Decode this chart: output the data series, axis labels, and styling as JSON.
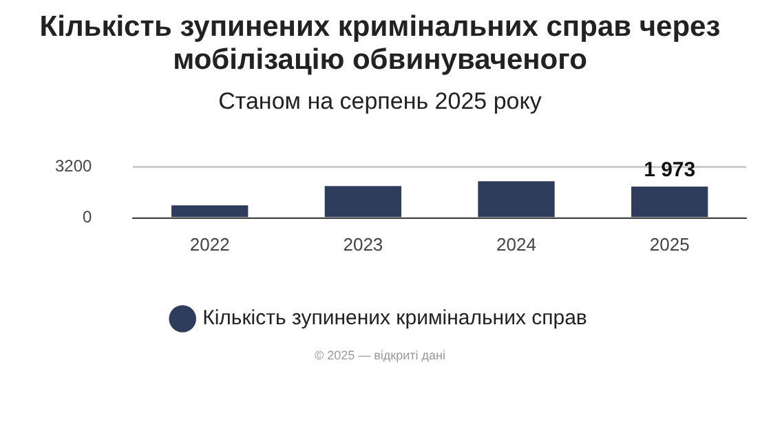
{
  "chart_data": {
    "type": "bar",
    "title": "Кількість зупинених кримінальних справ через мобілізацію обвинуваченого",
    "subtitle": "Станом на серпень 2025 року",
    "categories": [
      "2022",
      "2023",
      "2024",
      "2025"
    ],
    "series": [
      {
        "name": "Кількість зупинених кримінальних справ",
        "color": "#2e3d5c",
        "values": [
          800,
          2000,
          2300,
          1973
        ],
        "value_labels": [
          null,
          null,
          null,
          "1 973"
        ]
      }
    ],
    "ylim": [
      0,
      3200
    ],
    "yticks": [
      0,
      3200
    ],
    "grid": "y",
    "legend": "bottom",
    "annotations": [
      "© 2025 — відкриті дані"
    ]
  }
}
